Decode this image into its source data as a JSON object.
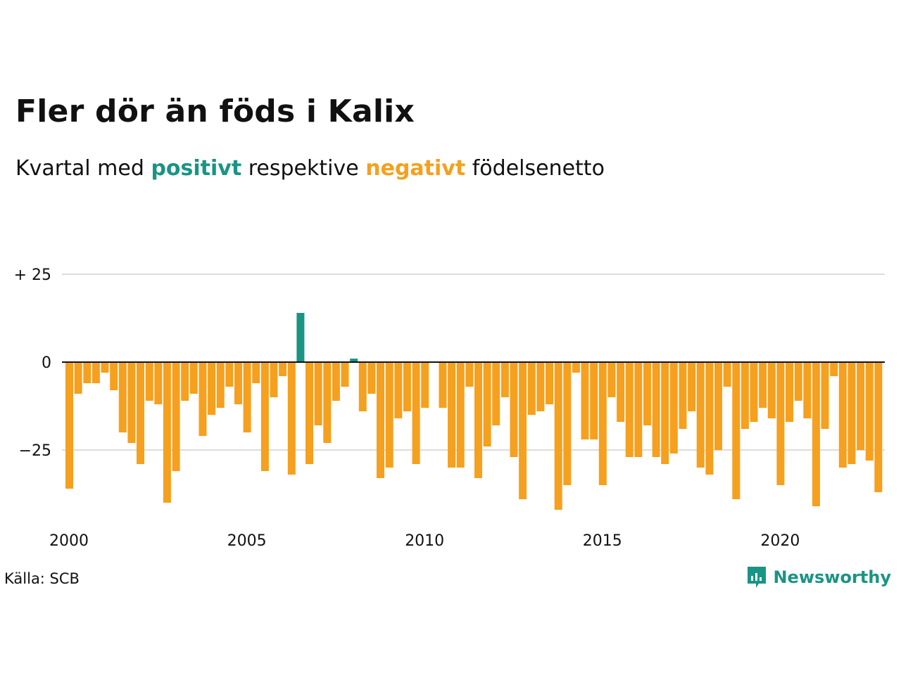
{
  "title": "Fler dör än föds i Kalix",
  "subtitle": {
    "prefix": "Kvartal med",
    "positive": "positivt",
    "middle": "respektive",
    "negative": "negativt",
    "suffix": "födelsenetto"
  },
  "source": "Källa: SCB",
  "brand": "Newsworthy",
  "colors": {
    "positive": "#1a9484",
    "negative": "#f5a01e",
    "grid": "#dcdcdc",
    "axis": "#111111"
  },
  "chart_data": {
    "type": "bar",
    "x_start_year": 2000,
    "quarters_per_year": 4,
    "ylim": [
      -45,
      30
    ],
    "yticks": [
      {
        "value": 25,
        "label": "+ 25"
      },
      {
        "value": 0,
        "label": "0"
      },
      {
        "value": -25,
        "label": "−25"
      }
    ],
    "xticks": [
      {
        "value": 2000,
        "label": "2000"
      },
      {
        "value": 2005,
        "label": "2005"
      },
      {
        "value": 2010,
        "label": "2010"
      },
      {
        "value": 2015,
        "label": "2015"
      },
      {
        "value": 2020,
        "label": "2020"
      }
    ],
    "values": [
      -36,
      -9,
      -6,
      -6,
      -3,
      -8,
      -20,
      -23,
      -29,
      -11,
      -12,
      -40,
      -31,
      -11,
      -9,
      -21,
      -15,
      -13,
      -7,
      -12,
      -20,
      -6,
      -31,
      -10,
      -4,
      -32,
      14,
      -29,
      -18,
      -23,
      -11,
      -7,
      1,
      -14,
      -9,
      -33,
      -30,
      -16,
      -14,
      -29,
      -13,
      0,
      -13,
      -30,
      -30,
      -7,
      -33,
      -24,
      -18,
      -10,
      -27,
      -39,
      -15,
      -14,
      -12,
      -42,
      -35,
      -3,
      -22,
      -22,
      -35,
      -10,
      -17,
      -27,
      -27,
      -18,
      -27,
      -29,
      -26,
      -19,
      -14,
      -30,
      -32,
      -25,
      -7,
      -39,
      -19,
      -17,
      -13,
      -16,
      -35,
      -17,
      -11,
      -16,
      -41,
      -19,
      -4,
      -30,
      -29,
      -25,
      -28,
      -37
    ]
  }
}
